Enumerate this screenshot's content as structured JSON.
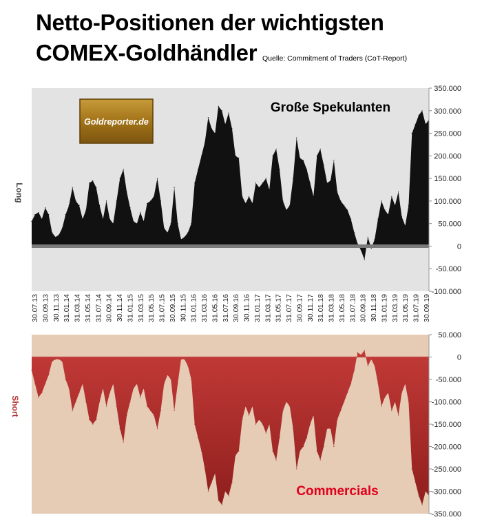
{
  "title_line1": "Netto-Positionen der wichtigsten",
  "title_line2": "COMEX-Goldhändler",
  "source": "Quelle: Commitment of Traders (CoT-Report)",
  "logo_text": "Goldreporter.de",
  "colors": {
    "top_fill": "#111111",
    "top_bg": "#e3e3e3",
    "bottom_fill": "#b3312f",
    "bottom_bg": "#e6cbb5",
    "zero_band": "#7a7a7a",
    "commercials_label": "#e0001b"
  },
  "chart_data": [
    {
      "type": "area",
      "panel_label": "Große Spekulanten",
      "ylabel": "Long",
      "ylim": [
        -100000,
        350000
      ],
      "yticks": [
        "350.000",
        "300.000",
        "250.000",
        "200.000",
        "150.000",
        "100.000",
        "50.000",
        "0",
        "-50.000",
        "-100.000"
      ],
      "x_ticks": [
        "30.07.13",
        "30.09.13",
        "30.11.13",
        "31.01.14",
        "31.03.14",
        "31.05.14",
        "31.07.14",
        "30.09.14",
        "30.11.14",
        "31.01.15",
        "31.03.15",
        "31.05.15",
        "31.07.15",
        "30.09.15",
        "30.11.15",
        "31.01.16",
        "31.03.16",
        "31.05.16",
        "31.07.16",
        "30.09.16",
        "30.11.16",
        "31.01.17",
        "31.03.17",
        "31.05.17",
        "31.07.17",
        "30.09.17",
        "30.11.17",
        "31.01.18",
        "31.03.18",
        "31.05.18",
        "31.07.18",
        "30.09.18",
        "30.11.18",
        "31.01.19",
        "31.03.19",
        "31.05.19",
        "31.07.19",
        "30.09.19"
      ],
      "series": [
        {
          "values": [
            55000,
            70000,
            75000,
            60000,
            85000,
            70000,
            30000,
            20000,
            25000,
            40000,
            70000,
            90000,
            130000,
            100000,
            90000,
            60000,
            80000,
            140000,
            145000,
            130000,
            90000,
            60000,
            100000,
            60000,
            50000,
            100000,
            150000,
            170000,
            120000,
            85000,
            55000,
            50000,
            75000,
            55000,
            95000,
            100000,
            110000,
            150000,
            100000,
            40000,
            30000,
            50000,
            130000,
            50000,
            15000,
            20000,
            30000,
            50000,
            140000,
            170000,
            200000,
            230000,
            285000,
            260000,
            250000,
            310000,
            300000,
            270000,
            295000,
            260000,
            200000,
            195000,
            110000,
            95000,
            110000,
            95000,
            140000,
            130000,
            140000,
            150000,
            125000,
            200000,
            215000,
            170000,
            100000,
            80000,
            90000,
            150000,
            240000,
            195000,
            190000,
            170000,
            140000,
            110000,
            200000,
            215000,
            180000,
            140000,
            145000,
            190000,
            120000,
            100000,
            90000,
            80000,
            60000,
            30000,
            5000,
            -10000,
            -30000,
            20000,
            -5000,
            15000,
            60000,
            100000,
            80000,
            70000,
            110000,
            90000,
            120000,
            65000,
            45000,
            90000,
            250000,
            270000,
            290000,
            300000,
            270000,
            280000
          ]
        }
      ]
    },
    {
      "type": "area",
      "panel_label": "Commercials",
      "ylabel": "Short",
      "ylim": [
        -350000,
        50000
      ],
      "yticks": [
        "50.000",
        "0",
        "-50.000",
        "-100.000",
        "-150.000",
        "-200.000",
        "-250.000",
        "-300.000",
        "-350.000"
      ],
      "series": [
        {
          "values": [
            -30000,
            -60000,
            -90000,
            -80000,
            -60000,
            -40000,
            -10000,
            -5000,
            -5000,
            -10000,
            -50000,
            -70000,
            -120000,
            -100000,
            -80000,
            -60000,
            -100000,
            -140000,
            -150000,
            -140000,
            -100000,
            -70000,
            -110000,
            -80000,
            -60000,
            -110000,
            -160000,
            -190000,
            -130000,
            -100000,
            -70000,
            -60000,
            -90000,
            -70000,
            -110000,
            -120000,
            -130000,
            -160000,
            -120000,
            -60000,
            -40000,
            -50000,
            -120000,
            -60000,
            -5000,
            -5000,
            -20000,
            -50000,
            -150000,
            -180000,
            -210000,
            -250000,
            -300000,
            -280000,
            -260000,
            -320000,
            -330000,
            -300000,
            -310000,
            -280000,
            -220000,
            -210000,
            -140000,
            -110000,
            -130000,
            -110000,
            -150000,
            -140000,
            -150000,
            -170000,
            -150000,
            -210000,
            -230000,
            -180000,
            -120000,
            -100000,
            -110000,
            -160000,
            -250000,
            -210000,
            -200000,
            -180000,
            -150000,
            -130000,
            -210000,
            -230000,
            -200000,
            -160000,
            -160000,
            -200000,
            -140000,
            -120000,
            -100000,
            -80000,
            -60000,
            -30000,
            10000,
            5000,
            15000,
            -20000,
            -5000,
            -20000,
            -60000,
            -110000,
            -90000,
            -80000,
            -120000,
            -100000,
            -130000,
            -80000,
            -60000,
            -100000,
            -250000,
            -280000,
            -310000,
            -330000,
            -300000,
            -310000
          ]
        }
      ]
    }
  ]
}
